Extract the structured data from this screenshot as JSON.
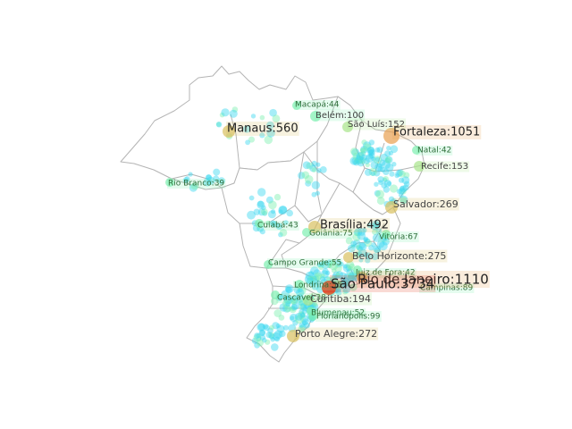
{
  "map": {
    "colors": {
      "background": "#ffffff",
      "state_border": "#b4b4b4",
      "small_city_bubble": "#39d8f0",
      "scale": [
        "#5ee0f5",
        "#7df0b0",
        "#a8e48a",
        "#d8c060",
        "#e8a050",
        "#e04828"
      ]
    },
    "labeled_cities": [
      {
        "id": "sao-paulo",
        "label": "São Paulo:3734",
        "value": 3734
      },
      {
        "id": "rio-de-janeiro",
        "label": "Rio de Janeiro:1110",
        "value": 1110
      },
      {
        "id": "fortaleza",
        "label": "Fortaleza:1051",
        "value": 1051
      },
      {
        "id": "manaus",
        "label": "Manaus:560",
        "value": 560
      },
      {
        "id": "brasilia",
        "label": "Brasília:492",
        "value": 492
      },
      {
        "id": "belo-horizonte",
        "label": "Belo Horizonte:275",
        "value": 275
      },
      {
        "id": "porto-alegre",
        "label": "Porto Alegre:272",
        "value": 272
      },
      {
        "id": "salvador",
        "label": "Salvador:269",
        "value": 269
      },
      {
        "id": "curitiba",
        "label": "Curitiba:194",
        "value": 194
      },
      {
        "id": "recife",
        "label": "Recife:153",
        "value": 153
      },
      {
        "id": "sao-luis",
        "label": "São Luís:152",
        "value": 152
      },
      {
        "id": "belem",
        "label": "Belém:100",
        "value": 100
      },
      {
        "id": "florianopolis",
        "label": "Florianópolis:99",
        "value": 99
      },
      {
        "id": "campinas",
        "label": "Campinas:89",
        "value": 89
      },
      {
        "id": "goiania",
        "label": "Goiânia:75",
        "value": 75
      },
      {
        "id": "vitoria",
        "label": "Vitória:67",
        "value": 67
      },
      {
        "id": "campo-grande",
        "label": "Campo Grande:55",
        "value": 55
      },
      {
        "id": "londrina",
        "label": "Londrina:55",
        "value": 55
      },
      {
        "id": "blumenau",
        "label": "Blumenau:52",
        "value": 52
      },
      {
        "id": "macapa",
        "label": "Macapá:44",
        "value": 44
      },
      {
        "id": "cuiaba",
        "label": "Cuiabá:43",
        "value": 43
      },
      {
        "id": "natal",
        "label": "Natal:42",
        "value": 42
      },
      {
        "id": "juiz-de-fora",
        "label": "Juiz de Fora:42",
        "value": 42
      },
      {
        "id": "rio-branco",
        "label": "Rio Branco:39",
        "value": 39
      },
      {
        "id": "cascavel",
        "label": "Cascavel:38",
        "value": 38
      }
    ]
  }
}
